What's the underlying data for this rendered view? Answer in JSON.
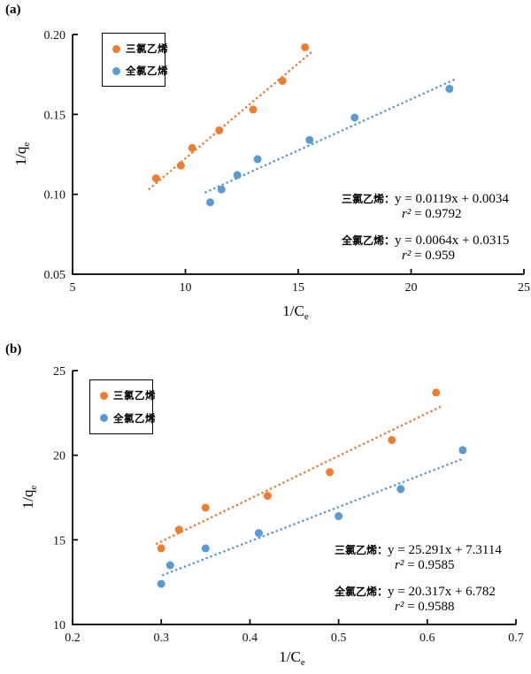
{
  "page": {
    "background": "#ffffff"
  },
  "colors": {
    "tce_orange": "#ED7D31",
    "pce_blue": "#5B9BD5",
    "axis": "#000000"
  },
  "chart_data": [
    {
      "type": "scatter",
      "panel_label": "(a)",
      "xlabel": "1/Ce",
      "ylabel": "1/qe",
      "xlabel_main": "1/C",
      "xlabel_sub": "e",
      "ylabel_main": "1/q",
      "ylabel_sub": "e",
      "xlim": [
        5,
        25
      ],
      "ylim": [
        0.05,
        0.2
      ],
      "x_ticks": [
        5,
        10,
        15,
        20,
        25
      ],
      "x_tick_labels": [
        "5",
        "10",
        "15",
        "20",
        "25"
      ],
      "y_ticks": [
        0.2,
        0.15,
        0.1,
        0.05
      ],
      "y_tick_labels": [
        "0.20",
        "0.15",
        "0.10",
        "0.05"
      ],
      "grid": false,
      "legend": {
        "position": "top-left-inside",
        "items": [
          {
            "label": "三氯乙烯",
            "color": "#ED7D31"
          },
          {
            "label": "全氯乙烯",
            "color": "#5B9BD5"
          }
        ]
      },
      "series": [
        {
          "name": "三氯乙烯",
          "color": "#ED7D31",
          "points": [
            [
              8.7,
              0.11
            ],
            [
              9.8,
              0.118
            ],
            [
              10.3,
              0.129
            ],
            [
              11.5,
              0.14
            ],
            [
              13.0,
              0.153
            ],
            [
              14.3,
              0.171
            ],
            [
              15.3,
              0.192
            ]
          ],
          "trendline": {
            "style": "dotted",
            "slope": 0.0119,
            "intercept": 0.0034,
            "r2": 0.9792,
            "x1": 8.4,
            "x2": 15.6
          }
        },
        {
          "name": "全氯乙烯",
          "color": "#5B9BD5",
          "points": [
            [
              11.1,
              0.095
            ],
            [
              11.6,
              0.103
            ],
            [
              12.3,
              0.112
            ],
            [
              13.2,
              0.122
            ],
            [
              15.5,
              0.134
            ],
            [
              17.5,
              0.148
            ],
            [
              21.7,
              0.166
            ]
          ],
          "trendline": {
            "style": "dotted",
            "slope": 0.0064,
            "intercept": 0.0315,
            "r2": 0.959,
            "x1": 10.9,
            "x2": 22.0
          }
        }
      ],
      "annotations": [
        {
          "label": "三氯乙烯：",
          "equation": "y = 0.0119x + 0.0034",
          "r2_sym": "r²",
          "r2_rest": " = 0.9792"
        },
        {
          "label": "全氯乙烯：",
          "equation": "y = 0.0064x + 0.0315",
          "r2_sym": "r²",
          "r2_rest": " = 0.959"
        }
      ]
    },
    {
      "type": "scatter",
      "panel_label": "(b)",
      "xlabel": "1/Ce",
      "ylabel": "1/qe",
      "xlabel_main": "1/C",
      "xlabel_sub": "e",
      "ylabel_main": "1/q",
      "ylabel_sub": "e",
      "xlim": [
        0.2,
        0.7
      ],
      "ylim": [
        10,
        25
      ],
      "x_ticks": [
        0.2,
        0.3,
        0.4,
        0.5,
        0.6,
        0.7
      ],
      "x_tick_labels": [
        "0.2",
        "0.3",
        "0.4",
        "0.5",
        "0.6",
        "0.7"
      ],
      "y_ticks": [
        25,
        20,
        15,
        10
      ],
      "y_tick_labels": [
        "25",
        "20",
        "15",
        "10"
      ],
      "grid": false,
      "legend": {
        "position": "top-left-inside",
        "items": [
          {
            "label": "三氯乙烯",
            "color": "#ED7D31"
          },
          {
            "label": "全氯乙烯",
            "color": "#5B9BD5"
          }
        ]
      },
      "series": [
        {
          "name": "三氯乙烯",
          "color": "#ED7D31",
          "points": [
            [
              0.3,
              14.5
            ],
            [
              0.32,
              15.6
            ],
            [
              0.35,
              16.9
            ],
            [
              0.42,
              17.6
            ],
            [
              0.49,
              19.0
            ],
            [
              0.56,
              20.9
            ],
            [
              0.61,
              23.7
            ]
          ],
          "trendline": {
            "style": "dotted",
            "slope": 25.291,
            "intercept": 7.3114,
            "r2": 0.9585,
            "x1": 0.295,
            "x2": 0.615
          }
        },
        {
          "name": "全氯乙烯",
          "color": "#5B9BD5",
          "points": [
            [
              0.3,
              12.4
            ],
            [
              0.31,
              13.5
            ],
            [
              0.35,
              14.5
            ],
            [
              0.41,
              15.4
            ],
            [
              0.5,
              16.4
            ],
            [
              0.57,
              18.0
            ],
            [
              0.64,
              20.3
            ]
          ],
          "trendline": {
            "style": "dotted",
            "slope": 20.317,
            "intercept": 6.782,
            "r2": 0.9588,
            "x1": 0.302,
            "x2": 0.638
          }
        }
      ],
      "annotations": [
        {
          "label": "三氯乙烯：",
          "equation": "y = 25.291x + 7.3114",
          "r2_sym": "r²",
          "r2_rest": " = 0.9585"
        },
        {
          "label": "全氯乙烯：",
          "equation": "y = 20.317x + 6.782",
          "r2_sym": "r²",
          "r2_rest": " = 0.9588"
        }
      ]
    }
  ]
}
